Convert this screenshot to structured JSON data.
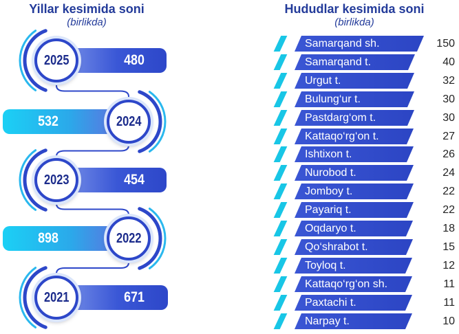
{
  "years_panel": {
    "title": "Yillar kesimida soni",
    "subtitle": "(birlikda)"
  },
  "regions_panel": {
    "title": "Hududlar kesimida soni",
    "subtitle": "(birlikda)"
  },
  "colors": {
    "title": "#233b9a",
    "bar_dark_blue": "#2d47c9",
    "bar_cyan": "#1bd0f5",
    "stripe": "#18c6e6",
    "value_text": "#222222"
  },
  "chart_data": [
    {
      "type": "bar",
      "title": "Yillar kesimida soni",
      "subtitle": "(birlikda)",
      "categories": [
        "2025",
        "2024",
        "2023",
        "2022",
        "2021"
      ],
      "values": [
        480,
        532,
        454,
        898,
        671
      ]
    },
    {
      "type": "bar",
      "title": "Hududlar kesimida soni",
      "subtitle": "(birlikda)",
      "categories": [
        "Samarqand sh.",
        "Samarqand t.",
        "Urgut t.",
        "Bulung‘ur t.",
        "Pastdarg‘om t.",
        "Kattaqo‘rg‘on t.",
        "Ishtixon t.",
        "Nurobod t.",
        "Jomboy t.",
        "Payariq t.",
        "Oqdaryo t.",
        "Qo‘shrabot t.",
        "Toyloq t.",
        "Kattaqo‘rg‘on sh.",
        "Paxtachi t.",
        "Narpay t."
      ],
      "values": [
        150,
        40,
        32,
        30,
        30,
        27,
        26,
        24,
        22,
        22,
        18,
        15,
        12,
        11,
        11,
        10
      ]
    }
  ]
}
